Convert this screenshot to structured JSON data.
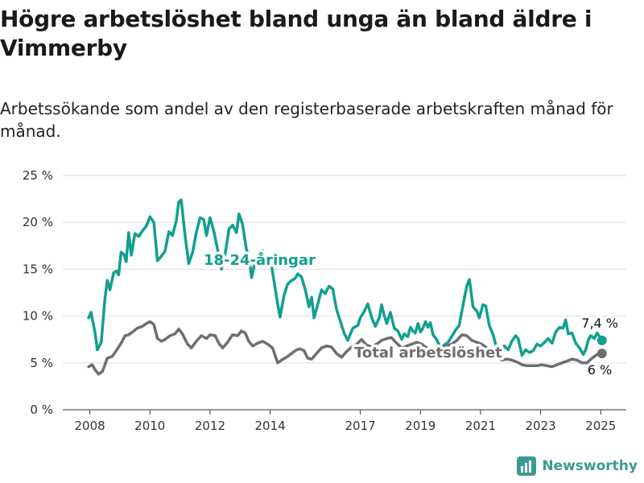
{
  "title": "Högre arbetslöshet bland unga än bland äldre i Vimmerby",
  "subtitle": "Arbetssökande som andel av den registerbaserade arbetskraften månad för månad.",
  "brand": "Newsworthy",
  "colors": {
    "youth": "#129f8f",
    "total": "#6e6e73",
    "grid": "#dddddd",
    "axis": "#333333",
    "brand": "#3d9a90"
  },
  "chart_data": {
    "type": "line",
    "y_tick_labels": [
      "0 %",
      "5 %",
      "10 %",
      "15 %",
      "20 %",
      "25 %"
    ],
    "y_ticks": [
      0,
      5,
      10,
      15,
      20,
      25
    ],
    "ylim": [
      0,
      25
    ],
    "x_tick_labels": [
      "2008",
      "2010",
      "2012",
      "2014",
      "2017",
      "2019",
      "2021",
      "2023",
      "2025"
    ],
    "x_ticks": [
      2008,
      2010,
      2012,
      2014,
      2017,
      2019,
      2021,
      2023,
      2025
    ],
    "xlim": [
      2007.1,
      2025.85
    ],
    "grid": true,
    "series": [
      {
        "name": "18-24-åringar",
        "end_label": "7,4 %",
        "points": [
          [
            2007.96,
            9.8
          ],
          [
            2008.04,
            10.4
          ],
          [
            2008.17,
            8.3
          ],
          [
            2008.25,
            6.4
          ],
          [
            2008.38,
            7.2
          ],
          [
            2008.5,
            11.8
          ],
          [
            2008.58,
            13.8
          ],
          [
            2008.67,
            12.8
          ],
          [
            2008.79,
            14.6
          ],
          [
            2008.88,
            14.8
          ],
          [
            2008.96,
            14.4
          ],
          [
            2009.04,
            16.8
          ],
          [
            2009.13,
            16.6
          ],
          [
            2009.21,
            15.8
          ],
          [
            2009.29,
            18.9
          ],
          [
            2009.38,
            16.5
          ],
          [
            2009.5,
            18.8
          ],
          [
            2009.63,
            18.5
          ],
          [
            2009.75,
            19.1
          ],
          [
            2009.88,
            19.6
          ],
          [
            2010.0,
            20.6
          ],
          [
            2010.13,
            20.0
          ],
          [
            2010.25,
            15.9
          ],
          [
            2010.38,
            16.4
          ],
          [
            2010.5,
            16.9
          ],
          [
            2010.63,
            19.0
          ],
          [
            2010.75,
            18.6
          ],
          [
            2010.88,
            20.2
          ],
          [
            2010.96,
            22.2
          ],
          [
            2011.04,
            22.4
          ],
          [
            2011.17,
            18.6
          ],
          [
            2011.29,
            15.6
          ],
          [
            2011.42,
            16.8
          ],
          [
            2011.54,
            18.9
          ],
          [
            2011.67,
            20.5
          ],
          [
            2011.79,
            20.3
          ],
          [
            2011.88,
            18.6
          ],
          [
            2012.0,
            20.5
          ],
          [
            2012.13,
            19.0
          ],
          [
            2012.25,
            17.1
          ],
          [
            2012.38,
            15.0
          ],
          [
            2012.5,
            16.6
          ],
          [
            2012.63,
            19.3
          ],
          [
            2012.75,
            19.7
          ],
          [
            2012.88,
            18.9
          ],
          [
            2012.96,
            20.9
          ],
          [
            2013.08,
            19.8
          ],
          [
            2013.21,
            17.1
          ],
          [
            2013.29,
            16.4
          ],
          [
            2013.38,
            14.1
          ],
          [
            2013.5,
            15.8
          ],
          [
            2013.63,
            16.6
          ],
          [
            2013.75,
            17.0
          ],
          [
            2013.83,
            16.0
          ],
          [
            2013.92,
            15.8
          ],
          [
            2014.04,
            15.5
          ],
          [
            2014.25,
            11.3
          ],
          [
            2014.33,
            9.9
          ],
          [
            2014.46,
            12.2
          ],
          [
            2014.58,
            13.4
          ],
          [
            2014.71,
            13.8
          ],
          [
            2014.83,
            14.0
          ],
          [
            2014.92,
            14.5
          ],
          [
            2015.04,
            14.2
          ],
          [
            2015.17,
            12.8
          ],
          [
            2015.29,
            11.0
          ],
          [
            2015.38,
            12.0
          ],
          [
            2015.46,
            9.8
          ],
          [
            2015.58,
            11.2
          ],
          [
            2015.71,
            12.8
          ],
          [
            2015.83,
            12.4
          ],
          [
            2015.96,
            13.2
          ],
          [
            2016.08,
            12.9
          ],
          [
            2016.21,
            10.7
          ],
          [
            2016.33,
            9.5
          ],
          [
            2016.46,
            8.2
          ],
          [
            2016.58,
            7.4
          ],
          [
            2016.75,
            8.7
          ],
          [
            2016.92,
            9.0
          ],
          [
            2017.0,
            9.8
          ],
          [
            2017.13,
            10.5
          ],
          [
            2017.25,
            11.3
          ],
          [
            2017.38,
            9.8
          ],
          [
            2017.5,
            8.9
          ],
          [
            2017.63,
            9.8
          ],
          [
            2017.71,
            11.2
          ],
          [
            2017.79,
            10.1
          ],
          [
            2017.88,
            9.2
          ],
          [
            2018.0,
            10.4
          ],
          [
            2018.13,
            8.7
          ],
          [
            2018.25,
            8.4
          ],
          [
            2018.38,
            7.5
          ],
          [
            2018.46,
            8.1
          ],
          [
            2018.58,
            7.8
          ],
          [
            2018.67,
            8.8
          ],
          [
            2018.75,
            8.4
          ],
          [
            2018.83,
            8.2
          ],
          [
            2018.92,
            9.2
          ],
          [
            2019.0,
            8.3
          ],
          [
            2019.08,
            8.7
          ],
          [
            2019.17,
            9.4
          ],
          [
            2019.25,
            8.8
          ],
          [
            2019.33,
            9.3
          ],
          [
            2019.42,
            8.0
          ],
          [
            2019.54,
            7.5
          ],
          [
            2019.67,
            6.6
          ],
          [
            2019.79,
            6.9
          ],
          [
            2019.92,
            7.2
          ],
          [
            2020.04,
            7.8
          ],
          [
            2020.17,
            8.5
          ],
          [
            2020.29,
            9.0
          ],
          [
            2020.42,
            11.2
          ],
          [
            2020.54,
            13.2
          ],
          [
            2020.63,
            13.9
          ],
          [
            2020.75,
            11.0
          ],
          [
            2020.88,
            10.5
          ],
          [
            2020.96,
            9.8
          ],
          [
            2021.08,
            11.2
          ],
          [
            2021.17,
            11.1
          ],
          [
            2021.29,
            9.0
          ],
          [
            2021.42,
            8.0
          ],
          [
            2021.54,
            6.5
          ],
          [
            2021.67,
            5.5
          ],
          [
            2021.79,
            6.8
          ],
          [
            2021.92,
            6.4
          ],
          [
            2022.04,
            7.3
          ],
          [
            2022.17,
            7.9
          ],
          [
            2022.25,
            7.6
          ],
          [
            2022.38,
            5.8
          ],
          [
            2022.5,
            6.4
          ],
          [
            2022.63,
            6.1
          ],
          [
            2022.75,
            6.3
          ],
          [
            2022.88,
            7.0
          ],
          [
            2023.0,
            6.8
          ],
          [
            2023.13,
            7.2
          ],
          [
            2023.25,
            7.6
          ],
          [
            2023.38,
            7.1
          ],
          [
            2023.5,
            8.3
          ],
          [
            2023.63,
            8.8
          ],
          [
            2023.75,
            8.7
          ],
          [
            2023.83,
            9.6
          ],
          [
            2023.92,
            8.1
          ],
          [
            2024.04,
            8.2
          ],
          [
            2024.17,
            7.1
          ],
          [
            2024.29,
            6.6
          ],
          [
            2024.42,
            5.9
          ],
          [
            2024.5,
            6.4
          ],
          [
            2024.58,
            7.4
          ],
          [
            2024.67,
            7.9
          ],
          [
            2024.79,
            7.6
          ],
          [
            2024.88,
            8.2
          ],
          [
            2025.04,
            7.4
          ]
        ]
      },
      {
        "name": "Total arbetslöshet",
        "end_label": "6 %",
        "points": [
          [
            2007.96,
            4.6
          ],
          [
            2008.08,
            4.8
          ],
          [
            2008.17,
            4.3
          ],
          [
            2008.29,
            3.8
          ],
          [
            2008.42,
            4.1
          ],
          [
            2008.58,
            5.5
          ],
          [
            2008.75,
            5.7
          ],
          [
            2008.92,
            6.5
          ],
          [
            2009.04,
            7.1
          ],
          [
            2009.17,
            7.9
          ],
          [
            2009.29,
            8.0
          ],
          [
            2009.42,
            8.3
          ],
          [
            2009.58,
            8.7
          ],
          [
            2009.75,
            8.9
          ],
          [
            2009.88,
            9.2
          ],
          [
            2010.0,
            9.4
          ],
          [
            2010.13,
            9.1
          ],
          [
            2010.25,
            7.6
          ],
          [
            2010.38,
            7.3
          ],
          [
            2010.5,
            7.5
          ],
          [
            2010.67,
            7.9
          ],
          [
            2010.83,
            8.1
          ],
          [
            2010.96,
            8.6
          ],
          [
            2011.08,
            8.1
          ],
          [
            2011.25,
            7.0
          ],
          [
            2011.38,
            6.6
          ],
          [
            2011.54,
            7.3
          ],
          [
            2011.71,
            7.9
          ],
          [
            2011.88,
            7.6
          ],
          [
            2012.0,
            8.0
          ],
          [
            2012.17,
            7.9
          ],
          [
            2012.29,
            7.1
          ],
          [
            2012.42,
            6.6
          ],
          [
            2012.58,
            7.2
          ],
          [
            2012.75,
            8.0
          ],
          [
            2012.92,
            7.9
          ],
          [
            2013.04,
            8.4
          ],
          [
            2013.17,
            8.2
          ],
          [
            2013.29,
            7.3
          ],
          [
            2013.42,
            6.8
          ],
          [
            2013.58,
            7.1
          ],
          [
            2013.75,
            7.3
          ],
          [
            2013.92,
            7.0
          ],
          [
            2014.08,
            6.6
          ],
          [
            2014.25,
            5.0
          ],
          [
            2014.38,
            5.3
          ],
          [
            2014.54,
            5.6
          ],
          [
            2014.71,
            6.0
          ],
          [
            2014.88,
            6.4
          ],
          [
            2015.0,
            6.5
          ],
          [
            2015.13,
            6.3
          ],
          [
            2015.25,
            5.5
          ],
          [
            2015.38,
            5.4
          ],
          [
            2015.54,
            6.0
          ],
          [
            2015.71,
            6.6
          ],
          [
            2015.88,
            6.8
          ],
          [
            2016.04,
            6.7
          ],
          [
            2016.21,
            6.0
          ],
          [
            2016.38,
            5.6
          ],
          [
            2016.54,
            6.2
          ],
          [
            2016.71,
            6.7
          ],
          [
            2016.88,
            7.0
          ],
          [
            2017.04,
            7.5
          ],
          [
            2017.21,
            6.9
          ],
          [
            2017.38,
            6.7
          ],
          [
            2017.54,
            7.0
          ],
          [
            2017.71,
            7.4
          ],
          [
            2017.88,
            7.6
          ],
          [
            2018.04,
            7.7
          ],
          [
            2018.21,
            7.1
          ],
          [
            2018.38,
            6.6
          ],
          [
            2018.54,
            6.8
          ],
          [
            2018.71,
            7.0
          ],
          [
            2018.88,
            7.2
          ],
          [
            2019.04,
            7.0
          ],
          [
            2019.21,
            6.6
          ],
          [
            2019.38,
            6.4
          ],
          [
            2019.54,
            6.5
          ],
          [
            2019.71,
            6.7
          ],
          [
            2019.88,
            6.8
          ],
          [
            2020.04,
            7.0
          ],
          [
            2020.21,
            7.4
          ],
          [
            2020.38,
            8.0
          ],
          [
            2020.54,
            7.9
          ],
          [
            2020.71,
            7.4
          ],
          [
            2020.88,
            7.2
          ],
          [
            2021.04,
            7.0
          ],
          [
            2021.21,
            6.6
          ],
          [
            2021.38,
            6.0
          ],
          [
            2021.54,
            5.6
          ],
          [
            2021.71,
            5.3
          ],
          [
            2021.88,
            5.4
          ],
          [
            2022.04,
            5.3
          ],
          [
            2022.21,
            5.1
          ],
          [
            2022.38,
            4.8
          ],
          [
            2022.54,
            4.7
          ],
          [
            2022.71,
            4.7
          ],
          [
            2022.88,
            4.7
          ],
          [
            2023.04,
            4.8
          ],
          [
            2023.21,
            4.7
          ],
          [
            2023.38,
            4.6
          ],
          [
            2023.54,
            4.8
          ],
          [
            2023.71,
            5.0
          ],
          [
            2023.88,
            5.2
          ],
          [
            2024.04,
            5.4
          ],
          [
            2024.21,
            5.3
          ],
          [
            2024.38,
            5.0
          ],
          [
            2024.54,
            5.0
          ],
          [
            2024.71,
            5.5
          ],
          [
            2024.88,
            5.9
          ],
          [
            2025.04,
            6.0
          ]
        ]
      }
    ]
  }
}
